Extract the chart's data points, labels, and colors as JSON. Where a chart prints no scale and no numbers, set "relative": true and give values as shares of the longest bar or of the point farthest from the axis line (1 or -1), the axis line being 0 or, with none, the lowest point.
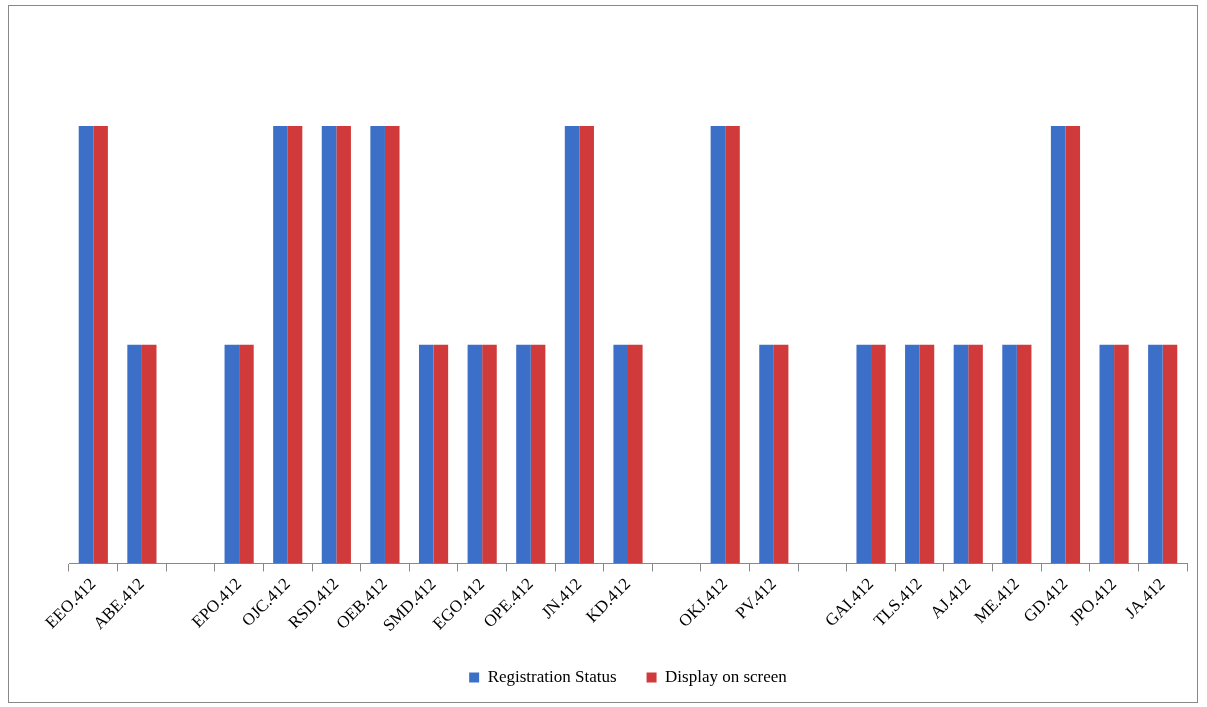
{
  "chart_data": {
    "type": "bar",
    "relative": true,
    "categories": [
      "EEO.412",
      "ABE.412",
      null,
      "EPO.412",
      "OJC.412",
      "RSD.412",
      "OEB.412",
      "SMD.412",
      "EGO.412",
      "OPE.412",
      "JN.412",
      "KD.412",
      null,
      "OKJ.412",
      "PV.412",
      null,
      "GAI.412",
      "TLS.412",
      "AJ.412",
      "ME.412",
      "GD.412",
      "JPO.412",
      "JA.412"
    ],
    "series": [
      {
        "name": "Registration Status",
        "color": "#3c6fc8",
        "values": [
          1,
          0.5,
          0,
          0.5,
          1,
          1,
          1,
          0.5,
          0.5,
          0.5,
          1,
          0.5,
          0,
          1,
          0.5,
          0,
          0.5,
          0.5,
          0.5,
          0.5,
          1,
          0.5,
          0.5
        ]
      },
      {
        "name": "Display on screen",
        "color": "#d03a3a",
        "values": [
          1,
          0.5,
          0,
          0.5,
          1,
          1,
          1,
          0.5,
          0.5,
          0.5,
          1,
          0.5,
          0,
          1,
          0.5,
          0,
          0.5,
          0.5,
          0.5,
          0.5,
          1,
          0.5,
          0.5
        ]
      }
    ],
    "legend": "bottom",
    "grid": false
  }
}
